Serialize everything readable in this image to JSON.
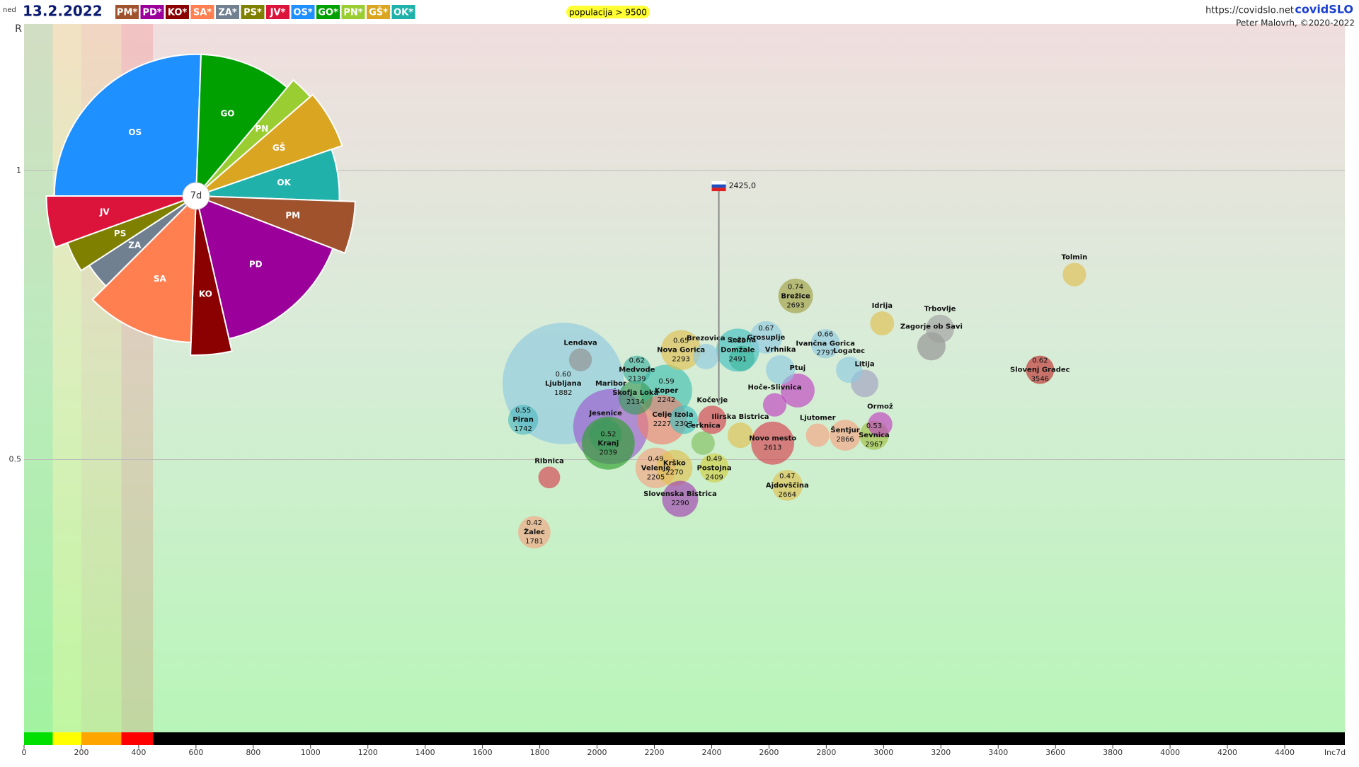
{
  "header": {
    "day": "ned",
    "date": "13.2.2022",
    "party_legend": [
      "PM*",
      "PD*",
      "KO*",
      "SA*",
      "ZA*",
      "PS*",
      "JV*",
      "OS*",
      "GO*",
      "PN*",
      "GŠ*",
      "OK*"
    ],
    "filter": "populacija > 9500",
    "url": "https://covidslo.net",
    "brand": "covidSLO",
    "author": "Peter Malovrh, ©2020-2022"
  },
  "chart_data": [
    {
      "type": "bubble",
      "y_axis_label": "R",
      "x_axis_label": "Inc7d",
      "log_y": true,
      "grid": true,
      "xlim": [
        0,
        4610
      ],
      "xticks": [
        0,
        200,
        400,
        600,
        800,
        1000,
        1200,
        1400,
        1600,
        1800,
        2000,
        2200,
        2400,
        2600,
        2800,
        3000,
        3200,
        3400,
        3600,
        3800,
        4000,
        4200,
        4400
      ],
      "ylim": [
        0.26,
        1.42
      ],
      "yticks": [
        0.5,
        1
      ],
      "bands": {
        "edges": [
          0,
          100,
          200,
          340,
          450
        ],
        "colors": [
          "#00e000",
          "#ffff00",
          "#ffa500",
          "#ff0000"
        ]
      },
      "slovenia": {
        "x": 2425,
        "y": 0.963,
        "y_low": 0.57,
        "label": "2425,0"
      },
      "names": [
        "Ljubljana",
        "Piran",
        "Žalec",
        "Lendava",
        "Ribnica",
        "Maribor",
        "Kranj",
        "Jesenice",
        "Škofja Loka",
        "Medvode",
        "Koper",
        "Nova Gorica",
        "Celje",
        "Izola",
        "Velenje",
        "Krško",
        "Slovenska Bistrica",
        "Postojna",
        "Cerknica",
        "Domžale",
        "Brezovica",
        "Sežana",
        "Kočevje",
        "Grosuplje",
        "Ilirska Bistrica",
        "Novo mesto",
        "Hoče-Slivnica",
        "Ajdovščina",
        "Brežice",
        "Vrhnika",
        "Ptuj",
        "Ljutomer",
        "Ivančna Gorica",
        "Šentjur",
        "Sevnica",
        "Ormož",
        "Litija",
        "Logatec",
        "Idrija",
        "Zagorje ob Savi",
        "Trbovlje",
        "Slovenj Gradec",
        "Tolmin"
      ],
      "x": [
        1882,
        1742,
        1781,
        1942,
        1833,
        2048,
        2039,
        2030,
        2134,
        2139,
        2242,
        2293,
        2227,
        2303,
        2205,
        2270,
        2290,
        2409,
        2370,
        2491,
        2380,
        2505,
        2402,
        2590,
        2500,
        2613,
        2620,
        2664,
        2693,
        2640,
        2700,
        2770,
        2797,
        2866,
        2967,
        2988,
        2934,
        2880,
        2995,
        3167,
        3197,
        3546,
        3666
      ],
      "y": [
        0.6,
        0.55,
        0.42,
        0.635,
        0.479,
        0.541,
        0.52,
        0.53,
        0.58,
        0.62,
        0.59,
        0.65,
        0.55,
        0.55,
        0.49,
        0.49,
        0.455,
        0.49,
        0.52,
        0.65,
        0.64,
        0.637,
        0.55,
        0.67,
        0.53,
        0.52,
        0.57,
        0.47,
        0.74,
        0.62,
        0.59,
        0.53,
        0.66,
        0.53,
        0.53,
        0.544,
        0.6,
        0.62,
        0.693,
        0.656,
        0.684,
        0.62,
        0.779
      ],
      "sizes": [
        295000,
        18000,
        21000,
        10500,
        9500,
        113000,
        56000,
        21000,
        23000,
        16000,
        53000,
        32000,
        49000,
        16000,
        33000,
        26000,
        26000,
        17000,
        11000,
        37000,
        13000,
        13000,
        16000,
        21000,
        13000,
        37000,
        11000,
        19000,
        24000,
        17000,
        23000,
        11000,
        17000,
        19000,
        17000,
        12000,
        15000,
        14000,
        11500,
        16000,
        16000,
        16000,
        11000
      ],
      "colors": [
        "#8fc9e0",
        "#4fb8c0",
        "#f4a582",
        "#909090",
        "#d6404e",
        "#9b59d0",
        "#2ca02c",
        "#3a9a5a",
        "#3a9a5a",
        "#40b0a0",
        "#40c0b0",
        "#e0c050",
        "#f08070",
        "#40c0c0",
        "#f4a582",
        "#e0c050",
        "#a040b0",
        "#d0d040",
        "#80c060",
        "#40c0c0",
        "#8fc9e0",
        "#40b8a0",
        "#d6404e",
        "#8fc9e0",
        "#e0c050",
        "#d6404e",
        "#c040c0",
        "#e0c050",
        "#a0a040",
        "#8fc9e0",
        "#c040c0",
        "#f4a582",
        "#8fc9e0",
        "#f4a582",
        "#a0c040",
        "#c040c0",
        "#a0a0c0",
        "#8fc9e0",
        "#e0c050",
        "#909090",
        "#a0a0a0",
        "#c03030",
        "#e0c050"
      ],
      "y_labels": [
        "0.60",
        "0.55",
        "0.42",
        null,
        null,
        null,
        "0.52",
        null,
        null,
        "0.62",
        "0.59",
        "0.65",
        null,
        null,
        "0.49",
        null,
        null,
        "0.49",
        null,
        "0.65",
        null,
        null,
        null,
        "0.67",
        null,
        null,
        null,
        "0.47",
        "0.74",
        null,
        null,
        null,
        "0.66",
        null,
        "0.53",
        null,
        null,
        null,
        null,
        null,
        null,
        "0.62",
        null
      ],
      "x_labels": [
        "1882",
        "1742",
        "1781",
        null,
        null,
        null,
        "2039",
        null,
        "2134",
        "2139",
        "2242",
        "2293",
        "2227",
        "2303",
        "2205",
        "2270",
        "2290",
        "2409",
        null,
        "2491",
        null,
        null,
        null,
        null,
        null,
        "2613",
        null,
        "2664",
        "2693",
        null,
        null,
        null,
        "2797",
        "2866",
        "2967",
        null,
        null,
        null,
        null,
        null,
        null,
        "3546",
        null
      ]
    },
    {
      "type": "pie",
      "center_label": "7d",
      "categories": [
        "OS",
        "GO",
        "PN",
        "GŠ",
        "OK",
        "PM",
        "PD",
        "KO",
        "SA",
        "ZA",
        "PS",
        "JV"
      ],
      "values": [
        92,
        38,
        9,
        22,
        21,
        19,
        56,
        15,
        43,
        12,
        13,
        20
      ],
      "radii": [
        89,
        89,
        95,
        97,
        90,
        100,
        92,
        100,
        92,
        80,
        86,
        94
      ],
      "colors": [
        "#1e90ff",
        "#00a000",
        "#9acd32",
        "#daa520",
        "#20b2aa",
        "#a0522d",
        "#9b009b",
        "#8b0000",
        "#ff7f50",
        "#708090",
        "#808000",
        "#dc143c"
      ]
    }
  ]
}
